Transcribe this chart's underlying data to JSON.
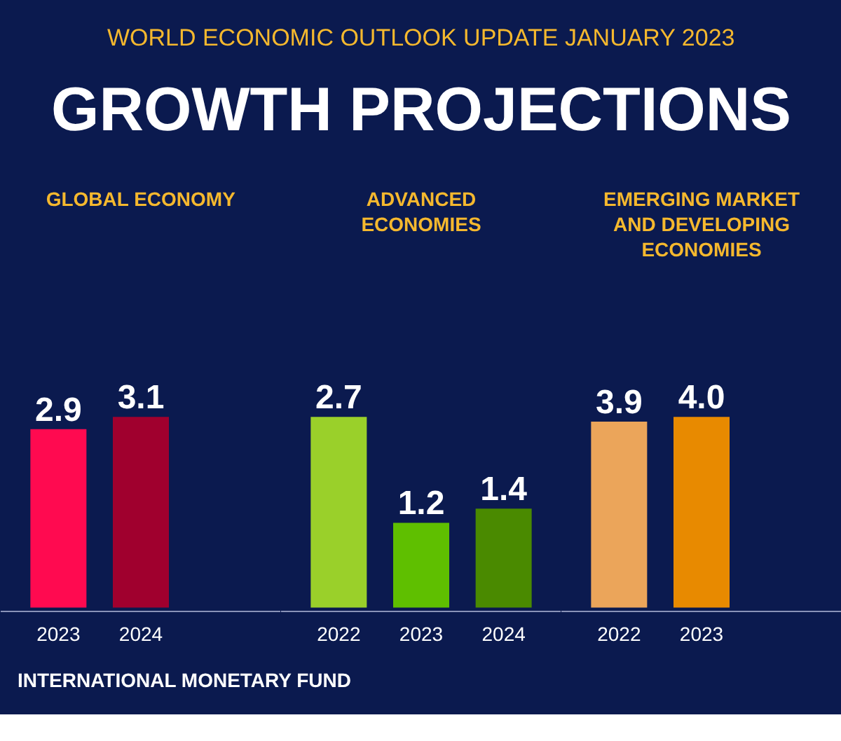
{
  "chart_data": [
    {
      "type": "other",
      "subtitle": "WORLD ECONOMIC OUTLOOK UPDATE JANUARY 2023",
      "title": "GROWTH PROJECTIONS",
      "annotations": [
        "INTERNATIONAL MONETARY FUND"
      ]
    },
    {
      "type": "bar",
      "title": "GLOBAL ECONOMY",
      "categories": [
        "2023",
        "2024"
      ],
      "values": [
        2.9,
        3.1
      ],
      "value_labels": [
        "2.9",
        "3.1"
      ],
      "colors": [
        "#ff0a50",
        "#a0002e"
      ]
    },
    {
      "type": "bar",
      "title": "ADVANCED ECONOMIES",
      "categories": [
        "2022",
        "2023",
        "2024"
      ],
      "values": [
        2.7,
        1.2,
        1.4
      ],
      "value_labels": [
        "2.7",
        "1.2",
        "1.4"
      ],
      "colors": [
        "#9ad02a",
        "#5fbf00",
        "#4a8a00"
      ]
    },
    {
      "type": "bar",
      "title": "EMERGING MARKET AND DEVELOPING ECONOMIES",
      "categories": [
        "2022",
        "2023"
      ],
      "values": [
        3.9,
        4.0
      ],
      "value_labels": [
        "3.9",
        "4.0"
      ],
      "colors": [
        "#eba55a",
        "#e88a00"
      ]
    }
  ]
}
